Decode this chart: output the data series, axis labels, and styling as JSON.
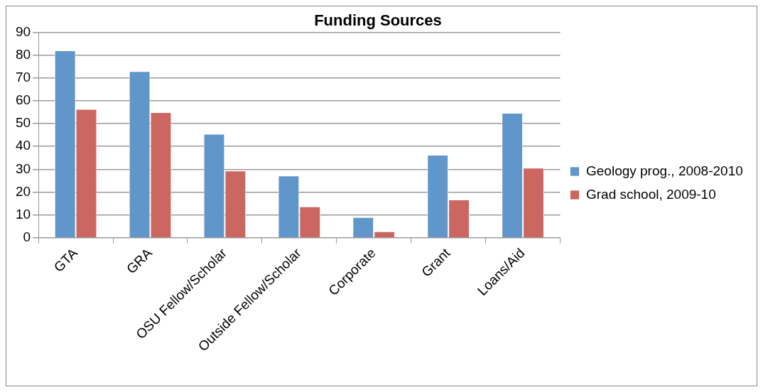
{
  "chart_data": {
    "type": "bar",
    "title": "Funding Sources",
    "categories": [
      "GTA",
      "GRA",
      "OSU Fellow/Scholar",
      "Outside Fellow/Scholar",
      "Corporate",
      "Grant",
      "Loans/Aid"
    ],
    "series": [
      {
        "name": "Geology prog., 2008-2010",
        "color": "#6096c9",
        "values": [
          82,
          72.9,
          45.5,
          27.2,
          9,
          36.3,
          54.7
        ]
      },
      {
        "name": "Grad school, 2009-10",
        "color": "#cc6660",
        "values": [
          56.4,
          55,
          29.4,
          13.7,
          2.8,
          16.7,
          30.6
        ]
      }
    ],
    "ylim": [
      0,
      90
    ],
    "yticks": [
      0,
      10,
      20,
      30,
      40,
      50,
      60,
      70,
      80,
      90
    ],
    "grid": "y",
    "legend": "right"
  }
}
